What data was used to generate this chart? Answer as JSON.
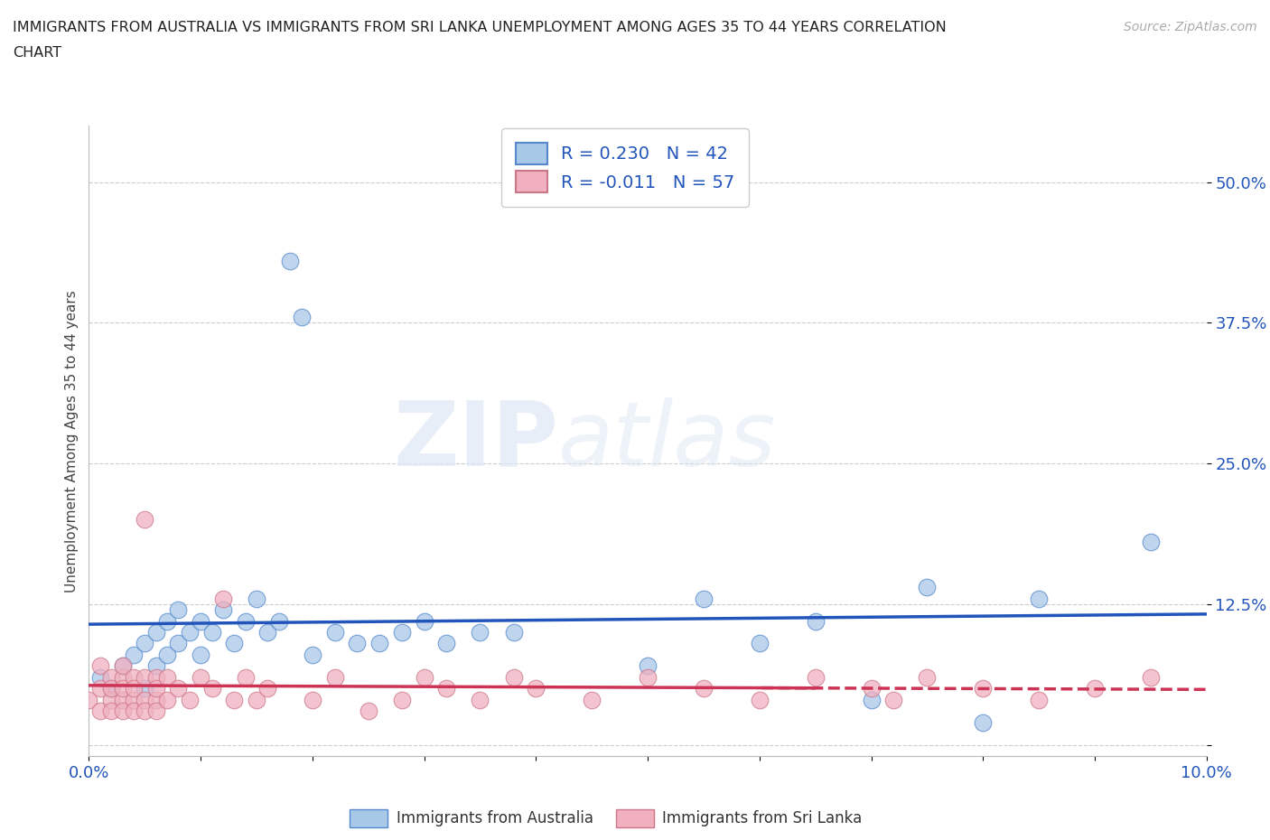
{
  "title_line1": "IMMIGRANTS FROM AUSTRALIA VS IMMIGRANTS FROM SRI LANKA UNEMPLOYMENT AMONG AGES 35 TO 44 YEARS CORRELATION",
  "title_line2": "CHART",
  "source": "Source: ZipAtlas.com",
  "ylabel": "Unemployment Among Ages 35 to 44 years",
  "xlim": [
    0.0,
    0.1
  ],
  "ylim": [
    -0.01,
    0.55
  ],
  "yticks": [
    0.0,
    0.125,
    0.25,
    0.375,
    0.5
  ],
  "ytick_labels": [
    "",
    "12.5%",
    "25.0%",
    "37.5%",
    "50.0%"
  ],
  "australia_color": "#a8c8e8",
  "australia_edge_color": "#5588cc",
  "srilanka_color": "#f0b0c0",
  "srilanka_edge_color": "#cc7788",
  "australia_line_color": "#2255bb",
  "srilanka_line_color": "#cc3355",
  "legend_r_australia": "R = 0.230",
  "legend_n_australia": "N = 42",
  "legend_r_srilanka": "R = -0.011",
  "legend_n_srilanka": "N = 57",
  "watermark_zip": "ZIP",
  "watermark_atlas": "atlas",
  "background_color": "#ffffff",
  "grid_color": "#cccccc",
  "australia_x": [
    0.001,
    0.002,
    0.003,
    0.004,
    0.005,
    0.005,
    0.006,
    0.006,
    0.007,
    0.007,
    0.008,
    0.008,
    0.009,
    0.01,
    0.01,
    0.011,
    0.012,
    0.013,
    0.014,
    0.015,
    0.016,
    0.017,
    0.018,
    0.019,
    0.02,
    0.022,
    0.024,
    0.026,
    0.028,
    0.03,
    0.032,
    0.035,
    0.038,
    0.05,
    0.055,
    0.06,
    0.065,
    0.07,
    0.075,
    0.08,
    0.085,
    0.095
  ],
  "australia_y": [
    0.06,
    0.05,
    0.07,
    0.08,
    0.05,
    0.09,
    0.07,
    0.1,
    0.08,
    0.11,
    0.09,
    0.12,
    0.1,
    0.08,
    0.11,
    0.1,
    0.12,
    0.09,
    0.11,
    0.13,
    0.1,
    0.11,
    0.43,
    0.38,
    0.08,
    0.1,
    0.09,
    0.09,
    0.1,
    0.11,
    0.09,
    0.1,
    0.1,
    0.07,
    0.13,
    0.09,
    0.11,
    0.04,
    0.14,
    0.02,
    0.13,
    0.18
  ],
  "srilanka_x": [
    0.0,
    0.001,
    0.001,
    0.001,
    0.002,
    0.002,
    0.002,
    0.002,
    0.003,
    0.003,
    0.003,
    0.003,
    0.003,
    0.004,
    0.004,
    0.004,
    0.004,
    0.005,
    0.005,
    0.005,
    0.005,
    0.006,
    0.006,
    0.006,
    0.006,
    0.007,
    0.007,
    0.008,
    0.009,
    0.01,
    0.011,
    0.012,
    0.013,
    0.014,
    0.015,
    0.016,
    0.02,
    0.022,
    0.025,
    0.028,
    0.03,
    0.032,
    0.035,
    0.038,
    0.04,
    0.045,
    0.05,
    0.055,
    0.06,
    0.065,
    0.07,
    0.072,
    0.075,
    0.08,
    0.085,
    0.09,
    0.095
  ],
  "srilanka_y": [
    0.04,
    0.03,
    0.05,
    0.07,
    0.04,
    0.06,
    0.03,
    0.05,
    0.04,
    0.06,
    0.03,
    0.05,
    0.07,
    0.04,
    0.06,
    0.03,
    0.05,
    0.04,
    0.06,
    0.03,
    0.2,
    0.04,
    0.06,
    0.03,
    0.05,
    0.04,
    0.06,
    0.05,
    0.04,
    0.06,
    0.05,
    0.13,
    0.04,
    0.06,
    0.04,
    0.05,
    0.04,
    0.06,
    0.03,
    0.04,
    0.06,
    0.05,
    0.04,
    0.06,
    0.05,
    0.04,
    0.06,
    0.05,
    0.04,
    0.06,
    0.05,
    0.04,
    0.06,
    0.05,
    0.04,
    0.05,
    0.06
  ]
}
